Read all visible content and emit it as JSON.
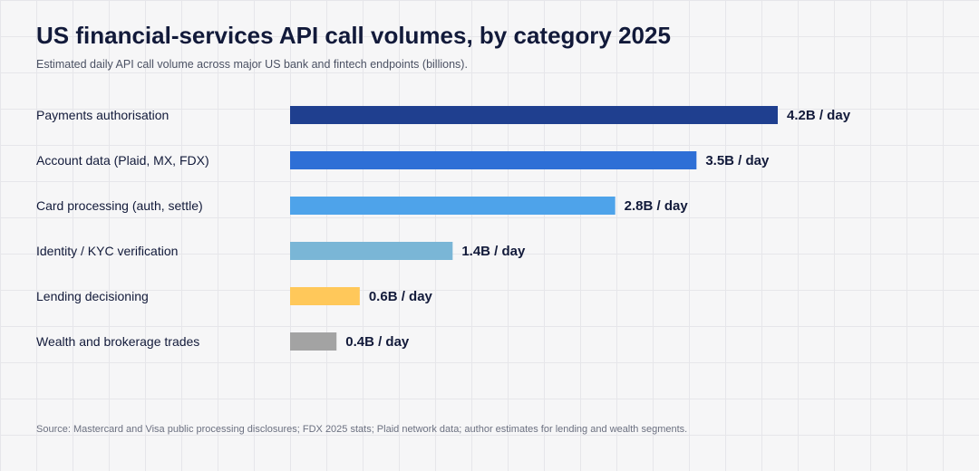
{
  "header": {
    "title": "US financial-services API call volumes, by category 2025",
    "subtitle": "Estimated daily API call volume across major US bank and fintech endpoints (billions)."
  },
  "footer": {
    "source": "Source: Mastercard and Visa public processing disclosures; FDX 2025 stats; Plaid network data; author estimates for lending and wealth segments."
  },
  "chart_data": {
    "type": "bar",
    "orientation": "horizontal",
    "title": "US financial-services API call volumes, by category 2025",
    "subtitle": "Estimated daily API call volume across major US bank and fintech endpoints (billions).",
    "categories": [
      "Payments authorisation",
      "Account data (Plaid, MX, FDX)",
      "Card processing (auth, settle)",
      "Identity / KYC verification",
      "Lending decisioning",
      "Wealth and brokerage trades"
    ],
    "values": [
      4.2,
      3.5,
      2.8,
      1.4,
      0.6,
      0.4
    ],
    "value_labels": [
      "4.2B / day",
      "3.5B / day",
      "2.8B / day",
      "1.4B / day",
      "0.6B / day",
      "0.4B / day"
    ],
    "colors": [
      "#1f3f8f",
      "#2e6fd6",
      "#4ea3ea",
      "#7ab6d6",
      "#ffc85a",
      "#a3a3a3"
    ],
    "unit": "billions per day",
    "xlim": [
      0,
      4.2
    ],
    "grid": false,
    "legend": "none"
  }
}
